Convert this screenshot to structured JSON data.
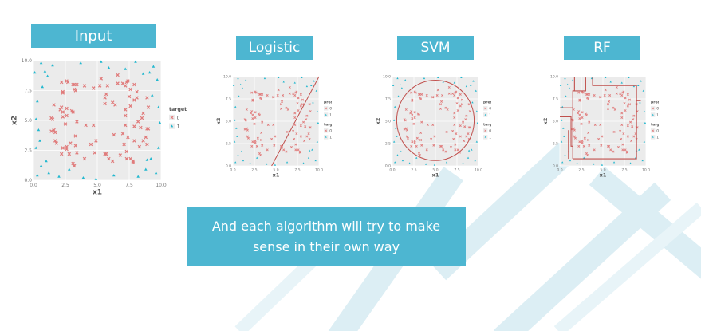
{
  "labels": {
    "input": "Input",
    "logistic": "Logistic",
    "svm": "SVM",
    "rf": "RF"
  },
  "caption": {
    "line1": "And each algorithm will try to make",
    "line2": "sense in their own way"
  },
  "colors": {
    "class0": "#e07b7b",
    "class1": "#22b8cf",
    "panel_bg": "#ebebeb",
    "boundary": "#c0504d",
    "accent": "#4db6d1"
  },
  "chart_data": [
    {
      "type": "scatter",
      "panel": "input",
      "xlabel": "x1",
      "ylabel": "x2",
      "xlim": [
        0,
        10
      ],
      "ylim": [
        0,
        10
      ],
      "xticks": [
        "0.0",
        "2.5",
        "5.0",
        "7.5",
        "10.0"
      ],
      "yticks": [
        "0.0",
        "2.5",
        "5.0",
        "7.5",
        "10.0"
      ],
      "legend": {
        "title": "target",
        "entries": [
          "0",
          "1"
        ],
        "placement": "right"
      },
      "series": [
        {
          "name": "0",
          "points": [
            [
              2.6,
              5.4
            ],
            [
              3.4,
              4.9
            ],
            [
              2.3,
              5.7
            ],
            [
              3.3,
              3.7
            ],
            [
              4.1,
              4.6
            ],
            [
              2.1,
              5.9
            ],
            [
              3.1,
              5.7
            ],
            [
              3.0,
              5.8
            ],
            [
              2.5,
              4.7
            ],
            [
              2.6,
              6.0
            ],
            [
              5.2,
              7.9
            ],
            [
              4.9,
              3.3
            ],
            [
              5.6,
              6.9
            ],
            [
              4.5,
              3.0
            ],
            [
              5.6,
              6.4
            ],
            [
              5.7,
              7.2
            ],
            [
              4.7,
              7.7
            ],
            [
              6.3,
              3.8
            ],
            [
              4.7,
              4.6
            ],
            [
              6.2,
              6.5
            ],
            [
              7.2,
              4.6
            ],
            [
              6.4,
              6.3
            ],
            [
              7.2,
              5.9
            ],
            [
              7.0,
              3.9
            ],
            [
              7.6,
              6.2
            ],
            [
              7.2,
              5.4
            ],
            [
              7.4,
              3.6
            ],
            [
              7.9,
              4.5
            ],
            [
              7.9,
              6.7
            ],
            [
              8.2,
              4.9
            ],
            [
              4.8,
              2.3
            ],
            [
              6.2,
              1.6
            ],
            [
              7.3,
              2.4
            ],
            [
              4.0,
              1.8
            ],
            [
              5.7,
              2.2
            ],
            [
              2.8,
              2.2
            ],
            [
              3.2,
              1.2
            ],
            [
              7.8,
              1.5
            ],
            [
              5.9,
              1.8
            ],
            [
              5.6,
              2.2
            ],
            [
              4.7,
              7.7
            ],
            [
              7.0,
              8.1
            ],
            [
              7.6,
              7.6
            ],
            [
              5.3,
              8.5
            ],
            [
              4.0,
              7.9
            ],
            [
              3.2,
              7.6
            ],
            [
              6.6,
              8.8
            ],
            [
              5.8,
              7.9
            ],
            [
              3.4,
              8.0
            ],
            [
              2.2,
              8.2
            ],
            [
              1.4,
              4.1
            ],
            [
              1.5,
              5.1
            ],
            [
              1.7,
              3.3
            ],
            [
              1.4,
              5.2
            ],
            [
              1.6,
              4.2
            ],
            [
              1.8,
              3.1
            ],
            [
              1.6,
              6.3
            ],
            [
              2.3,
              5.3
            ],
            [
              2.2,
              6.1
            ],
            [
              1.7,
              4.0
            ],
            [
              8.9,
              4.3
            ],
            [
              8.5,
              5.2
            ],
            [
              8.4,
              4.4
            ],
            [
              8.9,
              3.0
            ],
            [
              9.0,
              6.1
            ],
            [
              8.6,
              3.3
            ],
            [
              8.8,
              3.6
            ],
            [
              8.9,
              6.9
            ],
            [
              8.6,
              5.6
            ],
            [
              9.0,
              4.3
            ],
            [
              3.3,
              2.9
            ],
            [
              2.2,
              2.2
            ],
            [
              2.6,
              2.6
            ],
            [
              2.9,
              3.1
            ],
            [
              3.1,
              1.4
            ],
            [
              3.4,
              2.3
            ],
            [
              2.6,
              2.8
            ],
            [
              2.3,
              2.7
            ],
            [
              7.9,
              3.3
            ],
            [
              7.8,
              1.6
            ],
            [
              6.8,
              2.1
            ],
            [
              8.3,
              2.8
            ],
            [
              7.1,
              3.0
            ],
            [
              7.3,
              1.8
            ],
            [
              7.6,
              1.8
            ],
            [
              2.3,
              7.3
            ],
            [
              3.2,
              8.0
            ],
            [
              2.7,
              8.2
            ],
            [
              3.3,
              7.5
            ],
            [
              2.3,
              7.4
            ],
            [
              3.1,
              8.0
            ],
            [
              2.6,
              8.3
            ],
            [
              7.9,
              8.0
            ],
            [
              7.3,
              8.2
            ],
            [
              7.5,
              7.0
            ],
            [
              6.6,
              8.1
            ],
            [
              8.1,
              7.4
            ],
            [
              8.1,
              6.9
            ],
            [
              7.2,
              7.9
            ],
            [
              7.4,
              8.3
            ]
          ]
        },
        {
          "name": "1",
          "points": [
            [
              0.3,
              0.4
            ],
            [
              0.6,
              1.2
            ],
            [
              0.2,
              2.7
            ],
            [
              0.5,
              3.3
            ],
            [
              0.3,
              6.6
            ],
            [
              0.7,
              7.8
            ],
            [
              0.1,
              9.0
            ],
            [
              0.6,
              9.8
            ],
            [
              9.6,
              0.6
            ],
            [
              9.2,
              1.8
            ],
            [
              9.8,
              2.7
            ],
            [
              9.3,
              7.1
            ],
            [
              9.7,
              8.4
            ],
            [
              9.4,
              9.5
            ],
            [
              2.0,
              0.3
            ],
            [
              3.9,
              0.2
            ],
            [
              6.3,
              0.4
            ],
            [
              8.2,
              0.3
            ],
            [
              1.5,
              9.6
            ],
            [
              3.7,
              9.8
            ],
            [
              5.9,
              9.4
            ],
            [
              8.0,
              9.9
            ],
            [
              1.2,
              0.6
            ],
            [
              8.8,
              0.9
            ],
            [
              0.9,
              9.1
            ],
            [
              9.1,
              9.0
            ],
            [
              4.9,
              0.1
            ],
            [
              5.3,
              9.9
            ],
            [
              0.2,
              5.1
            ],
            [
              9.9,
              4.8
            ],
            [
              1.0,
              1.6
            ],
            [
              8.9,
              1.7
            ],
            [
              1.1,
              8.7
            ],
            [
              8.6,
              8.9
            ],
            [
              2.8,
              0.9
            ],
            [
              7.2,
              9.3
            ],
            [
              9.8,
              6.1
            ],
            [
              0.4,
              4.2
            ]
          ]
        }
      ]
    },
    {
      "type": "scatter",
      "panel": "logistic",
      "xlabel": "x1",
      "ylabel": "x2",
      "xlim": [
        0,
        10
      ],
      "ylim": [
        0,
        10
      ],
      "xticks": [
        "0.0",
        "2.5",
        "5.0",
        "7.5",
        "10.0"
      ],
      "yticks": [
        "0.0",
        "2.5",
        "5.0",
        "7.5",
        "10.0"
      ],
      "legend_groups": [
        {
          "title": "predicted",
          "entries": [
            "0",
            "1"
          ]
        },
        {
          "title": "target",
          "entries": [
            "0",
            "1"
          ]
        }
      ],
      "boundary": {
        "shape": "line",
        "from": [
          4.5,
          0
        ],
        "to": [
          10,
          10
        ]
      }
    },
    {
      "type": "scatter",
      "panel": "svm",
      "xlabel": "x1",
      "ylabel": "x2",
      "xlim": [
        0,
        10
      ],
      "ylim": [
        0,
        10
      ],
      "xticks": [
        "0.0",
        "2.5",
        "5.0",
        "7.5",
        "10.0"
      ],
      "yticks": [
        "0.0",
        "2.5",
        "5.0",
        "7.5",
        "10.0"
      ],
      "legend_groups": [
        {
          "title": "predicted",
          "entries": [
            "0",
            "1"
          ]
        },
        {
          "title": "target",
          "entries": [
            "0",
            "1"
          ]
        }
      ],
      "boundary": {
        "shape": "circle",
        "center": [
          5,
          5.1
        ],
        "radius": 4.5
      }
    },
    {
      "type": "scatter",
      "panel": "rf",
      "xlabel": "x1",
      "ylabel": "x2",
      "xlim": [
        0,
        10
      ],
      "ylim": [
        0,
        10
      ],
      "xticks": [
        "0.0",
        "2.5",
        "5.0",
        "7.5",
        "10.0"
      ],
      "yticks": [
        "0.0",
        "2.5",
        "5.0",
        "7.5",
        "10.0"
      ],
      "legend_groups": [
        {
          "title": "predicted",
          "entries": [
            "0",
            "1"
          ]
        },
        {
          "title": "target",
          "entries": [
            "0",
            "1"
          ]
        }
      ],
      "boundary": {
        "shape": "steps",
        "paths": [
          [
            [
              1.5,
              0.8
            ],
            [
              1.5,
              8.4
            ],
            [
              3.0,
              8.4
            ],
            [
              3.0,
              9.9
            ]
          ],
          [
            [
              1.5,
              8.4
            ],
            [
              1.7,
              8.4
            ],
            [
              1.7,
              10.0
            ]
          ],
          [
            [
              1.5,
              0.8
            ],
            [
              8.9,
              0.8
            ],
            [
              8.9,
              9.0
            ],
            [
              3.8,
              9.0
            ],
            [
              3.8,
              10.0
            ]
          ],
          [
            [
              0.0,
              5.5
            ],
            [
              1.3,
              5.5
            ],
            [
              1.3,
              2.2
            ],
            [
              1.5,
              2.2
            ]
          ],
          [
            [
              0.0,
              6.5
            ],
            [
              1.5,
              6.5
            ]
          ],
          [
            [
              1.0,
              0.8
            ],
            [
              1.0,
              4.0
            ]
          ],
          [
            [
              8.9,
              7.3
            ],
            [
              9.4,
              7.3
            ]
          ]
        ]
      }
    }
  ]
}
